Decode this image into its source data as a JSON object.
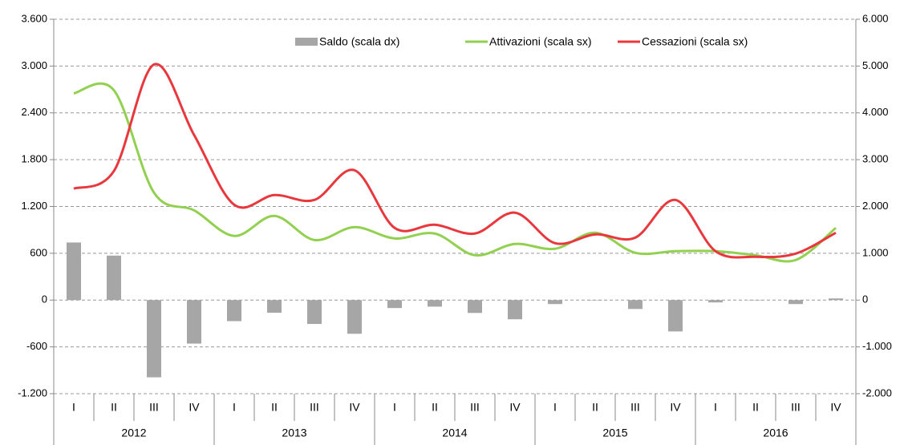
{
  "chart_data": {
    "type": "bar-line",
    "categories": [
      "I",
      "II",
      "III",
      "IV",
      "I",
      "II",
      "III",
      "IV",
      "I",
      "II",
      "III",
      "IV",
      "I",
      "II",
      "III",
      "IV",
      "I",
      "II",
      "III",
      "IV"
    ],
    "category_groups": [
      "2012",
      "2013",
      "2014",
      "2015",
      "2016"
    ],
    "series": [
      {
        "name": "Saldo (scala dx)",
        "type": "bar",
        "axis": "y2",
        "color": "#a6a6a6",
        "values": [
          1230,
          950,
          -1650,
          -930,
          -450,
          -270,
          -510,
          -720,
          -170,
          -140,
          -275,
          -410,
          -85,
          -5,
          -190,
          -670,
          -50,
          0,
          -85,
          35
        ]
      },
      {
        "name": "Attivazioni (scala sx)",
        "type": "line",
        "color": "#92d050",
        "values": [
          2650,
          2690,
          1377,
          1150,
          822,
          1079,
          770,
          935,
          790,
          853,
          575,
          719,
          658,
          863,
          606,
          627,
          627,
          575,
          514,
          925
        ]
      },
      {
        "name": "Cessazioni (scala sx)",
        "type": "line",
        "color": "#e8383d",
        "values": [
          1428,
          1654,
          3020,
          2116,
          1222,
          1346,
          1284,
          1664,
          925,
          966,
          853,
          1120,
          729,
          842,
          801,
          1284,
          627,
          555,
          596,
          863
        ]
      }
    ],
    "ylim": [
      -1200,
      3600
    ],
    "yticks": [
      {
        "value": -1200,
        "label": "-1.200"
      },
      -600,
      0,
      600,
      {
        "value": 1200,
        "label": "1.200"
      },
      {
        "value": 1800,
        "label": "1.800"
      },
      {
        "value": 2400,
        "label": "2.400"
      },
      {
        "value": 3000,
        "label": "3.000"
      },
      {
        "value": 3600,
        "label": "3.600"
      }
    ],
    "y2lim": [
      -2000,
      6000
    ],
    "y2ticks": [
      {
        "value": -2000,
        "label": "-2.000"
      },
      {
        "value": -1000,
        "label": "-1.000"
      },
      0,
      {
        "value": 1000,
        "label": "1.000"
      },
      {
        "value": 2000,
        "label": "2.000"
      },
      {
        "value": 3000,
        "label": "3.000"
      },
      {
        "value": 4000,
        "label": "4.000"
      },
      {
        "value": 5000,
        "label": "5.000"
      },
      {
        "value": 6000,
        "label": "6.000"
      }
    ],
    "grid": true
  }
}
